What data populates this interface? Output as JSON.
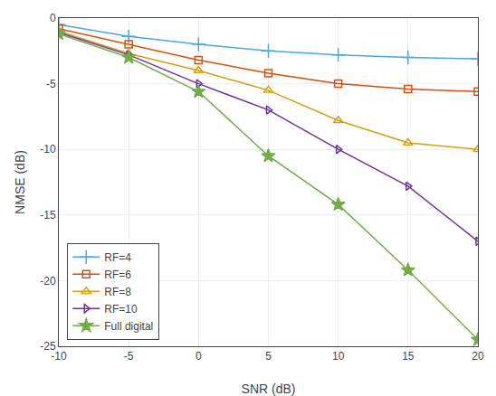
{
  "chart_data": {
    "type": "line",
    "x": [
      -10,
      -5,
      0,
      5,
      10,
      15,
      20
    ],
    "series": [
      {
        "name": "RF=4",
        "color": "#4CA8E0",
        "marker": "plus",
        "values": [
          -0.5,
          -1.4,
          -2.0,
          -2.5,
          -2.8,
          -3.0,
          -3.1
        ]
      },
      {
        "name": "RF=6",
        "color": "#D45010",
        "marker": "square",
        "values": [
          -0.8,
          -2.0,
          -3.2,
          -4.2,
          -5.0,
          -5.4,
          -5.6
        ]
      },
      {
        "name": "RF=8",
        "color": "#D4A010",
        "marker": "triangle-up",
        "values": [
          -1.0,
          -2.7,
          -4.0,
          -5.5,
          -7.8,
          -9.5,
          -10.0
        ]
      },
      {
        "name": "RF=10",
        "color": "#7030A0",
        "marker": "triangle-right",
        "values": [
          -1.1,
          -2.8,
          -5.0,
          -7.0,
          -10.0,
          -12.8,
          -17.0
        ]
      },
      {
        "name": "Full digital",
        "color": "#70AD47",
        "marker": "star",
        "values": [
          -1.2,
          -3.0,
          -5.6,
          -10.5,
          -14.2,
          -19.2,
          -24.5
        ]
      }
    ],
    "xlabel": "SNR (dB)",
    "ylabel": "NMSE (dB)",
    "xlim": [
      -10,
      20
    ],
    "ylim": [
      -25,
      0
    ],
    "xticks": [
      -10,
      -5,
      0,
      5,
      10,
      15,
      20
    ],
    "yticks": [
      0,
      -5,
      -10,
      -15,
      -20,
      -25
    ],
    "grid": true,
    "legend": "lower left"
  }
}
